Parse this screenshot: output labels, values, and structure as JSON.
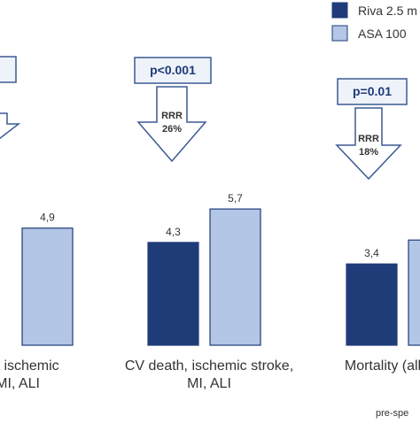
{
  "chart_data": {
    "type": "bar",
    "categories": [
      [
        "ath, ischemic",
        "MI, ALI"
      ],
      [
        "CV death, ischemic stroke,",
        "MI, ALI"
      ],
      [
        "Mortality (all"
      ]
    ],
    "series": [
      {
        "name": "Riva 2.5 m",
        "color": "#1f3c78",
        "values": [
          null,
          4.3,
          3.4
        ]
      },
      {
        "name": "ASA 100",
        "color": "#b3c6e6",
        "values": [
          4.9,
          5.7,
          4.4
        ]
      }
    ],
    "data_labels": [
      {
        "series": 1,
        "index": 0,
        "text": "4,9"
      },
      {
        "series": 0,
        "index": 1,
        "text": "4,3"
      },
      {
        "series": 1,
        "index": 1,
        "text": "5,7"
      },
      {
        "series": 0,
        "index": 2,
        "text": "3,4"
      }
    ],
    "annotations": [
      {
        "group": 0,
        "p_text": "l",
        "rrr": []
      },
      {
        "group": 1,
        "p_text": "p<0.001",
        "rrr": [
          "RRR",
          "26%"
        ]
      },
      {
        "group": 2,
        "p_text": "p=0.01",
        "rrr": [
          "RRR",
          "18%"
        ]
      }
    ],
    "footnote": "pre-spe",
    "ylim": [
      0,
      8
    ],
    "legend_position": "top-right",
    "grid": false
  }
}
